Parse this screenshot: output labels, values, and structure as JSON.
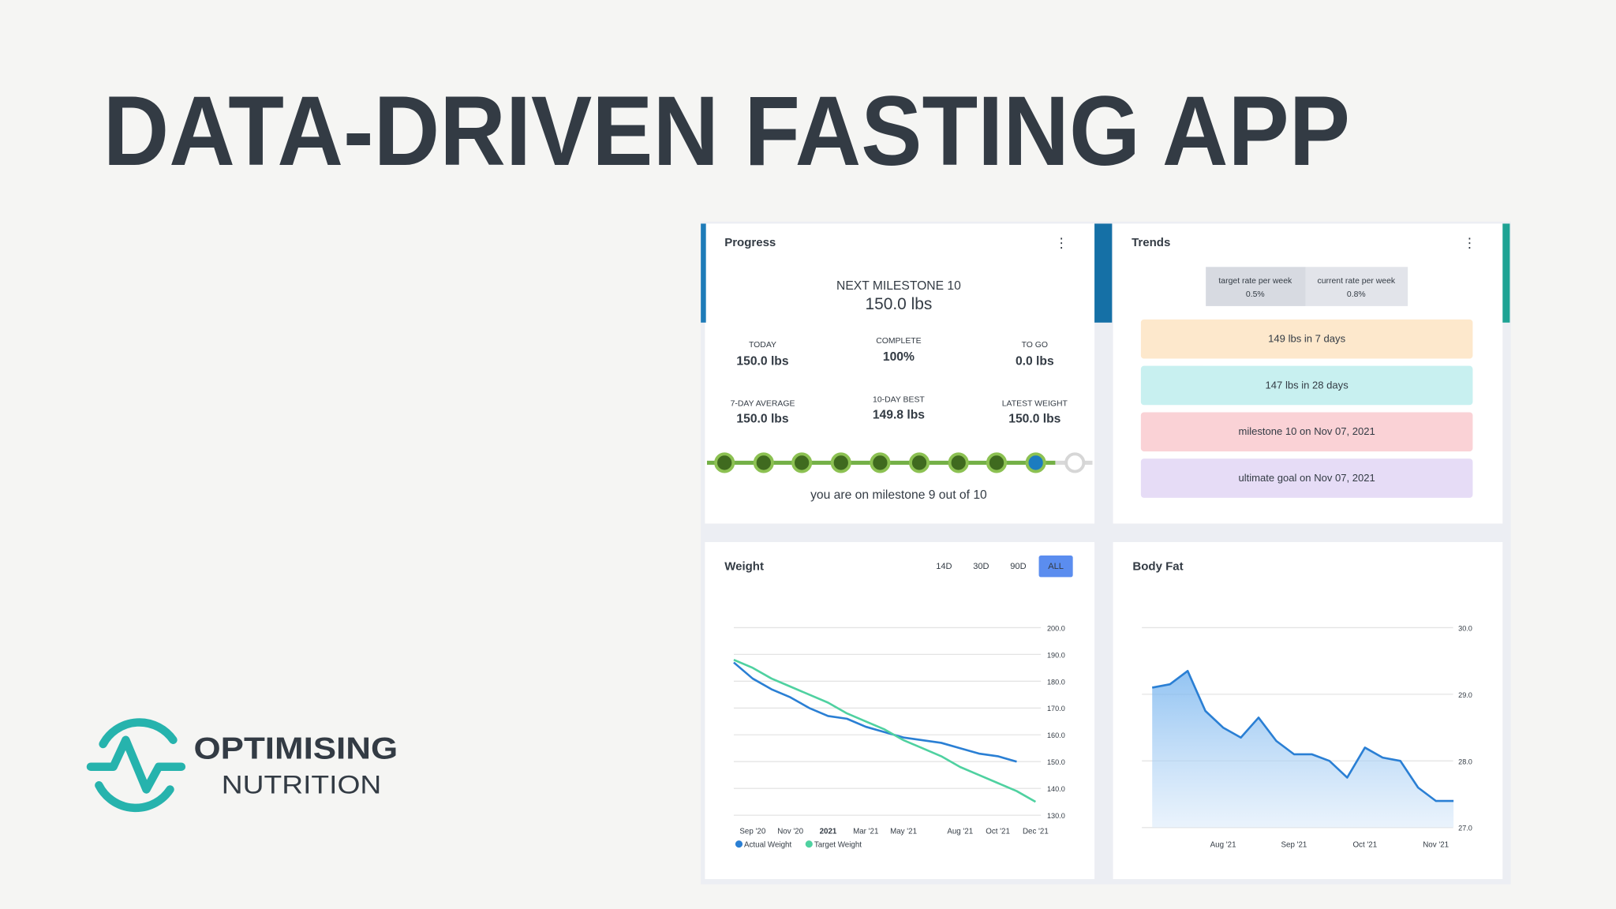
{
  "header": {
    "title": "DATA-DRIVEN FASTING APP"
  },
  "logo": {
    "line1": "OPTIMISING",
    "line2": "NUTRITION"
  },
  "progress": {
    "title": "Progress",
    "milestone_label": "NEXT MILESTONE 10",
    "milestone_value": "150.0 lbs",
    "stats": [
      {
        "label": "TODAY",
        "value": "150.0 lbs"
      },
      {
        "label": "COMPLETE",
        "value": "100%"
      },
      {
        "label": "TO GO",
        "value": "0.0 lbs"
      },
      {
        "label": "7-DAY AVERAGE",
        "value": "150.0 lbs"
      },
      {
        "label": "10-DAY BEST",
        "value": "149.8 lbs"
      },
      {
        "label": "LATEST WEIGHT",
        "value": "150.0 lbs"
      }
    ],
    "footer": "you are on milestone 9 out of 10"
  },
  "trends": {
    "title": "Trends",
    "rates": [
      {
        "label": "target rate per week",
        "value": "0.5%"
      },
      {
        "label": "current rate per week",
        "value": "0.8%"
      }
    ],
    "items": [
      {
        "text": "149 lbs in 7 days",
        "color": "#fde8cc"
      },
      {
        "text": "147 lbs in 28 days",
        "color": "#c8f0f0"
      },
      {
        "text": "milestone 10 on Nov 07, 2021",
        "color": "#fad2d6"
      },
      {
        "text": "ultimate goal on Nov 07, 2021",
        "color": "#e6dcf6"
      }
    ]
  },
  "chart_data": [
    {
      "type": "line",
      "title": "Weight",
      "ranges": [
        "14D",
        "30D",
        "90D",
        "ALL"
      ],
      "selected_range": 3,
      "categories": [
        null,
        "Sep '20",
        null,
        "Nov '20",
        null,
        "2021",
        null,
        "Mar '21",
        null,
        "May '21",
        null,
        null,
        "Aug '21",
        null,
        "Oct '21",
        null,
        "Dec '21"
      ],
      "series": [
        {
          "name": "Actual Weight",
          "color": "#2a7fd4",
          "values": [
            187,
            181,
            177,
            174,
            170,
            167,
            166,
            163,
            161,
            159,
            158,
            157,
            155,
            153,
            152,
            150,
            null
          ]
        },
        {
          "name": "Target Weight",
          "color": "#4fd1a0",
          "values": [
            188,
            185,
            181,
            178,
            175,
            172,
            168,
            165,
            162,
            158,
            155,
            152,
            148,
            145,
            142,
            139,
            135
          ]
        }
      ],
      "ylim": [
        130,
        200
      ],
      "yticks": [
        {
          "value": 130,
          "label": "130.0"
        },
        {
          "value": 140,
          "label": "140.0"
        },
        {
          "value": 150,
          "label": "150.0"
        },
        {
          "value": 160,
          "label": "160.0"
        },
        {
          "value": 170,
          "label": "170.0"
        },
        {
          "value": 180,
          "label": "180.0"
        },
        {
          "value": 190,
          "label": "190.0"
        },
        {
          "value": 200,
          "label": "200.0"
        }
      ],
      "grid": true,
      "legend": "bottom-left"
    },
    {
      "type": "area",
      "title": "Body Fat",
      "categories": [
        null,
        null,
        null,
        null,
        "Aug '21",
        null,
        null,
        null,
        "Sep '21",
        null,
        null,
        null,
        "Oct '21",
        null,
        null,
        null,
        "Nov '21",
        null
      ],
      "series": [
        {
          "color": "#2a7fd4",
          "values": [
            29.1,
            29.15,
            29.35,
            28.75,
            28.5,
            28.35,
            28.65,
            28.3,
            28.1,
            28.1,
            28.0,
            27.75,
            28.2,
            28.05,
            28.0,
            27.6,
            27.4,
            27.4
          ]
        }
      ],
      "ylim": [
        27,
        30
      ],
      "yticks": [
        {
          "value": 27,
          "label": "27.0"
        },
        {
          "value": 28,
          "label": "28.0"
        },
        {
          "value": 29,
          "label": "29.0"
        },
        {
          "value": 30,
          "label": "30.0"
        }
      ],
      "grid": true
    }
  ]
}
